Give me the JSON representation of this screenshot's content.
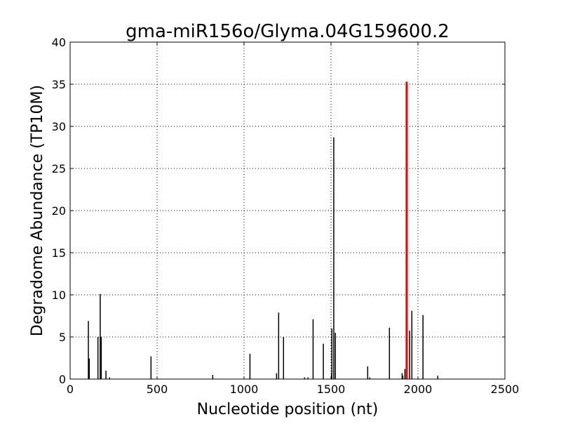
{
  "chart_data": {
    "type": "bar",
    "title": "gma-miR156o/Glyma.04G159600.2",
    "xlabel": "Nucleotide position (nt)",
    "ylabel": "Degradome Abundance (TP10M)",
    "xlim": [
      0,
      2500
    ],
    "ylim": [
      0,
      40
    ],
    "xticks": [
      0,
      500,
      1000,
      1500,
      2000,
      2500
    ],
    "yticks": [
      0,
      5,
      10,
      15,
      20,
      25,
      30,
      35,
      40
    ],
    "grid": true,
    "colors": {
      "default": "#000000",
      "highlight": "#ff0000"
    },
    "series": [
      {
        "x": [
          105,
          110,
          160,
          173,
          179,
          206,
          227,
          465,
          820,
          1034,
          1187,
          1199,
          1227,
          1348,
          1368,
          1397,
          1456,
          1503,
          1505,
          1516,
          1525,
          1711,
          1723,
          1836,
          1909,
          1913,
          1925,
          1952,
          1965,
          2029,
          2114
        ],
        "values": [
          6.9,
          2.45,
          5.0,
          10.1,
          5.0,
          1.0,
          0.2,
          2.7,
          0.5,
          3.0,
          0.7,
          7.9,
          5.0,
          0.2,
          0.2,
          7.1,
          4.2,
          0.5,
          6.0,
          28.7,
          5.5,
          1.5,
          0.2,
          6.1,
          0.7,
          0.4,
          1.2,
          5.75,
          8.1,
          7.6,
          0.4
        ]
      },
      {
        "x": [
          1935
        ],
        "values": [
          35.3
        ],
        "highlight": true
      }
    ]
  }
}
